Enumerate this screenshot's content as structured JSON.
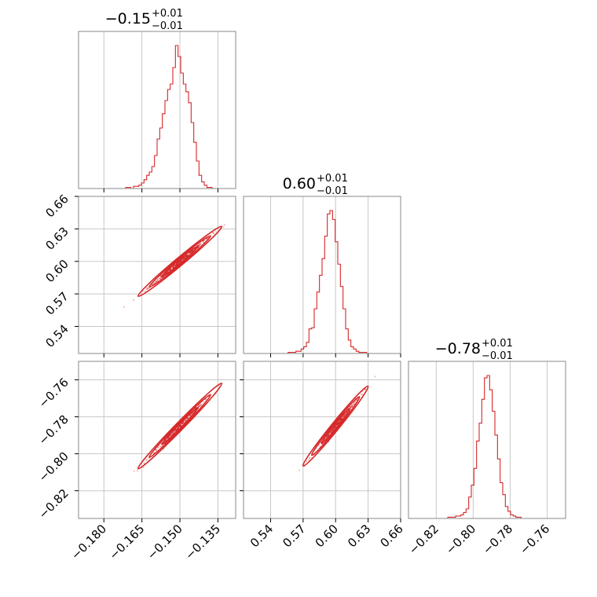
{
  "chart_data": {
    "type": "corner",
    "color": "#d62728",
    "grid": true,
    "parameters": [
      {
        "title": {
          "main": "−0.15",
          "sup": "+0.01",
          "sub": "−0.01"
        },
        "range": [
          -0.19,
          -0.128
        ],
        "ticks": [
          -0.18,
          -0.165,
          -0.15,
          -0.135
        ],
        "tick_labels": [
          "−0.180",
          "−0.165",
          "−0.150",
          "−0.135"
        ],
        "hist_counts": [
          0,
          0,
          0,
          0,
          0,
          0,
          0,
          0,
          0,
          0,
          0,
          0,
          0,
          0,
          0,
          0,
          0,
          0,
          1,
          1,
          0,
          2,
          2,
          3,
          5,
          8,
          12,
          15,
          20,
          30,
          45,
          55,
          68,
          80,
          90,
          95,
          110,
          130,
          120,
          105,
          95,
          88,
          78,
          60,
          42,
          25,
          12,
          6,
          3,
          1,
          1,
          0,
          0,
          0,
          0,
          0,
          0,
          0,
          0,
          0
        ]
      },
      {
        "title": {
          "main": "0.60",
          "sup": "+0.01",
          "sub": "−0.01"
        },
        "range": [
          0.515,
          0.66
        ],
        "ticks": [
          0.54,
          0.57,
          0.6,
          0.63,
          0.66
        ],
        "tick_labels": [
          "0.54",
          "0.57",
          "0.60",
          "0.63",
          "0.66"
        ],
        "hist_counts": [
          0,
          0,
          0,
          0,
          0,
          0,
          0,
          0,
          0,
          0,
          0,
          0,
          0,
          0,
          0,
          0,
          0,
          1,
          1,
          1,
          2,
          2,
          4,
          6,
          10,
          22,
          23,
          40,
          55,
          70,
          85,
          105,
          125,
          128,
          120,
          100,
          80,
          60,
          40,
          22,
          12,
          6,
          4,
          2,
          1,
          1,
          1,
          0,
          0,
          0,
          0,
          0,
          0,
          0,
          0,
          0,
          0,
          0,
          0,
          0
        ]
      },
      {
        "title": {
          "main": "−0.78",
          "sup": "+0.01",
          "sub": "−0.01"
        },
        "range": [
          -0.835,
          -0.75
        ],
        "ticks": [
          -0.82,
          -0.8,
          -0.78,
          -0.76
        ],
        "tick_labels": [
          "−0.82",
          "−0.80",
          "−0.78",
          "−0.76"
        ],
        "hist_counts": [
          0,
          0,
          0,
          0,
          0,
          0,
          0,
          0,
          0,
          0,
          0,
          0,
          0,
          0,
          0,
          1,
          1,
          1,
          2,
          2,
          3,
          5,
          8,
          18,
          28,
          42,
          65,
          80,
          100,
          118,
          120,
          108,
          90,
          70,
          50,
          30,
          20,
          10,
          6,
          3,
          2,
          1,
          1,
          0,
          0,
          0,
          0,
          0,
          0,
          0,
          0,
          0,
          0,
          0,
          0,
          0,
          0,
          0,
          0,
          0
        ]
      }
    ],
    "y_axis_labels": {
      "row2": {
        "ticks": [
          0.54,
          0.57,
          0.6,
          0.63,
          0.66
        ],
        "labels": [
          "0.54",
          "0.57",
          "0.60",
          "0.63",
          "0.66"
        ]
      },
      "row3": {
        "ticks": [
          -0.82,
          -0.8,
          -0.78,
          -0.76
        ],
        "labels": [
          "−0.82",
          "−0.80",
          "−0.78",
          "−0.76"
        ]
      }
    },
    "correlations": [
      {
        "pair": [
          0,
          1
        ],
        "slope": 1.95,
        "center": [
          -0.15,
          0.6
        ],
        "spread": [
          0.0055,
          0.0008
        ]
      },
      {
        "pair": [
          0,
          2
        ],
        "slope": 1.4,
        "center": [
          -0.15,
          -0.785
        ],
        "spread": [
          0.0055,
          0.0009
        ]
      },
      {
        "pair": [
          1,
          2
        ],
        "slope": 0.72,
        "center": [
          0.6,
          -0.785
        ],
        "spread": [
          0.01,
          0.0009
        ]
      }
    ]
  }
}
